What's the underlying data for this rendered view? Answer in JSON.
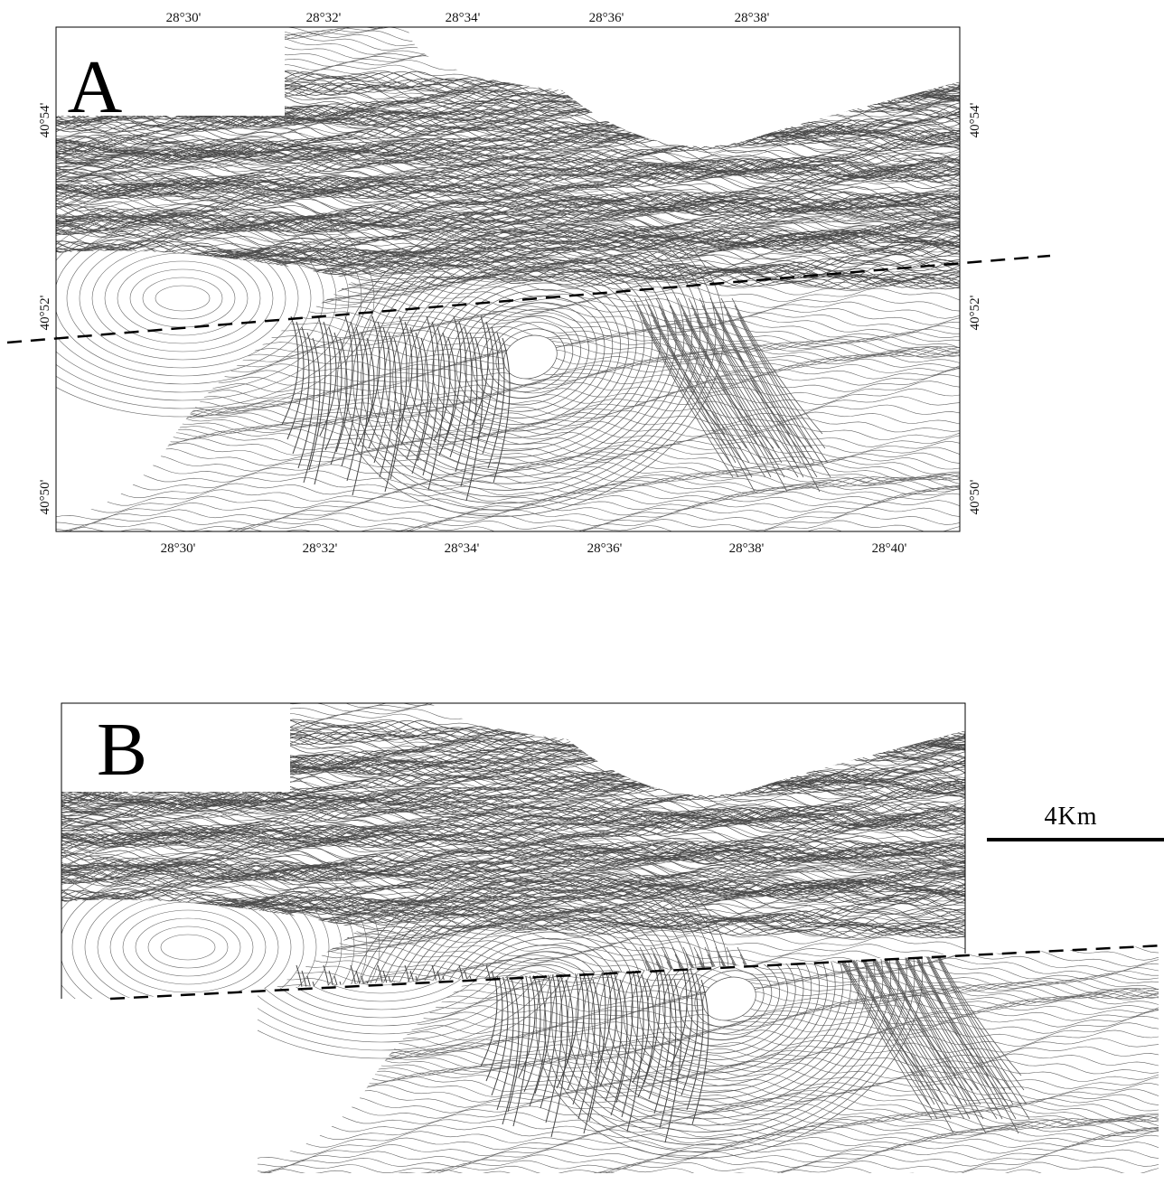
{
  "panel_a": {
    "label": "A",
    "top_ticks": [
      "28°30'",
      "28°32'",
      "28°34'",
      "28°36'",
      "28°38'"
    ],
    "bottom_ticks": [
      "28°30'",
      "28°32'",
      "28°34'",
      "28°36'",
      "28°38'",
      "28°40'"
    ],
    "left_ticks": [
      "40°54'",
      "40°52'",
      "40°50'"
    ],
    "right_ticks": [
      "40°54'",
      "40°52'",
      "40°50'"
    ]
  },
  "panel_b": {
    "label": "B"
  },
  "scale_bar": {
    "label": "4Km"
  }
}
